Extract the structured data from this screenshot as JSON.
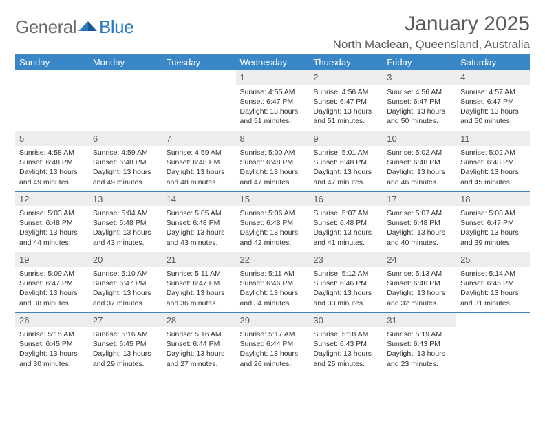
{
  "logo": {
    "text1": "General",
    "text2": "Blue"
  },
  "title": "January 2025",
  "location": "North Maclean, Queensland, Australia",
  "colors": {
    "header_bg": "#3a87c8",
    "header_text": "#ffffff",
    "daynum_bg": "#ededed",
    "row_border": "#3a87c8",
    "logo_gray": "#6a6a6a",
    "logo_blue": "#2a7ac0",
    "text": "#333333",
    "title_text": "#5a5a5a"
  },
  "typography": {
    "title_fontsize": 30,
    "location_fontsize": 17,
    "header_fontsize": 13,
    "daynum_fontsize": 13,
    "body_fontsize": 10.5
  },
  "weekdays": [
    "Sunday",
    "Monday",
    "Tuesday",
    "Wednesday",
    "Thursday",
    "Friday",
    "Saturday"
  ],
  "weeks": [
    [
      null,
      null,
      null,
      {
        "n": "1",
        "sunrise": "4:55 AM",
        "sunset": "6:47 PM",
        "daylight": "13 hours and 51 minutes."
      },
      {
        "n": "2",
        "sunrise": "4:56 AM",
        "sunset": "6:47 PM",
        "daylight": "13 hours and 51 minutes."
      },
      {
        "n": "3",
        "sunrise": "4:56 AM",
        "sunset": "6:47 PM",
        "daylight": "13 hours and 50 minutes."
      },
      {
        "n": "4",
        "sunrise": "4:57 AM",
        "sunset": "6:47 PM",
        "daylight": "13 hours and 50 minutes."
      }
    ],
    [
      {
        "n": "5",
        "sunrise": "4:58 AM",
        "sunset": "6:48 PM",
        "daylight": "13 hours and 49 minutes."
      },
      {
        "n": "6",
        "sunrise": "4:59 AM",
        "sunset": "6:48 PM",
        "daylight": "13 hours and 49 minutes."
      },
      {
        "n": "7",
        "sunrise": "4:59 AM",
        "sunset": "6:48 PM",
        "daylight": "13 hours and 48 minutes."
      },
      {
        "n": "8",
        "sunrise": "5:00 AM",
        "sunset": "6:48 PM",
        "daylight": "13 hours and 47 minutes."
      },
      {
        "n": "9",
        "sunrise": "5:01 AM",
        "sunset": "6:48 PM",
        "daylight": "13 hours and 47 minutes."
      },
      {
        "n": "10",
        "sunrise": "5:02 AM",
        "sunset": "6:48 PM",
        "daylight": "13 hours and 46 minutes."
      },
      {
        "n": "11",
        "sunrise": "5:02 AM",
        "sunset": "6:48 PM",
        "daylight": "13 hours and 45 minutes."
      }
    ],
    [
      {
        "n": "12",
        "sunrise": "5:03 AM",
        "sunset": "6:48 PM",
        "daylight": "13 hours and 44 minutes."
      },
      {
        "n": "13",
        "sunrise": "5:04 AM",
        "sunset": "6:48 PM",
        "daylight": "13 hours and 43 minutes."
      },
      {
        "n": "14",
        "sunrise": "5:05 AM",
        "sunset": "6:48 PM",
        "daylight": "13 hours and 43 minutes."
      },
      {
        "n": "15",
        "sunrise": "5:06 AM",
        "sunset": "6:48 PM",
        "daylight": "13 hours and 42 minutes."
      },
      {
        "n": "16",
        "sunrise": "5:07 AM",
        "sunset": "6:48 PM",
        "daylight": "13 hours and 41 minutes."
      },
      {
        "n": "17",
        "sunrise": "5:07 AM",
        "sunset": "6:48 PM",
        "daylight": "13 hours and 40 minutes."
      },
      {
        "n": "18",
        "sunrise": "5:08 AM",
        "sunset": "6:47 PM",
        "daylight": "13 hours and 39 minutes."
      }
    ],
    [
      {
        "n": "19",
        "sunrise": "5:09 AM",
        "sunset": "6:47 PM",
        "daylight": "13 hours and 38 minutes."
      },
      {
        "n": "20",
        "sunrise": "5:10 AM",
        "sunset": "6:47 PM",
        "daylight": "13 hours and 37 minutes."
      },
      {
        "n": "21",
        "sunrise": "5:11 AM",
        "sunset": "6:47 PM",
        "daylight": "13 hours and 36 minutes."
      },
      {
        "n": "22",
        "sunrise": "5:11 AM",
        "sunset": "6:46 PM",
        "daylight": "13 hours and 34 minutes."
      },
      {
        "n": "23",
        "sunrise": "5:12 AM",
        "sunset": "6:46 PM",
        "daylight": "13 hours and 33 minutes."
      },
      {
        "n": "24",
        "sunrise": "5:13 AM",
        "sunset": "6:46 PM",
        "daylight": "13 hours and 32 minutes."
      },
      {
        "n": "25",
        "sunrise": "5:14 AM",
        "sunset": "6:45 PM",
        "daylight": "13 hours and 31 minutes."
      }
    ],
    [
      {
        "n": "26",
        "sunrise": "5:15 AM",
        "sunset": "6:45 PM",
        "daylight": "13 hours and 30 minutes."
      },
      {
        "n": "27",
        "sunrise": "5:16 AM",
        "sunset": "6:45 PM",
        "daylight": "13 hours and 29 minutes."
      },
      {
        "n": "28",
        "sunrise": "5:16 AM",
        "sunset": "6:44 PM",
        "daylight": "13 hours and 27 minutes."
      },
      {
        "n": "29",
        "sunrise": "5:17 AM",
        "sunset": "6:44 PM",
        "daylight": "13 hours and 26 minutes."
      },
      {
        "n": "30",
        "sunrise": "5:18 AM",
        "sunset": "6:43 PM",
        "daylight": "13 hours and 25 minutes."
      },
      {
        "n": "31",
        "sunrise": "5:19 AM",
        "sunset": "6:43 PM",
        "daylight": "13 hours and 23 minutes."
      },
      null
    ]
  ],
  "labels": {
    "sunrise": "Sunrise:",
    "sunset": "Sunset:",
    "daylight": "Daylight:"
  }
}
